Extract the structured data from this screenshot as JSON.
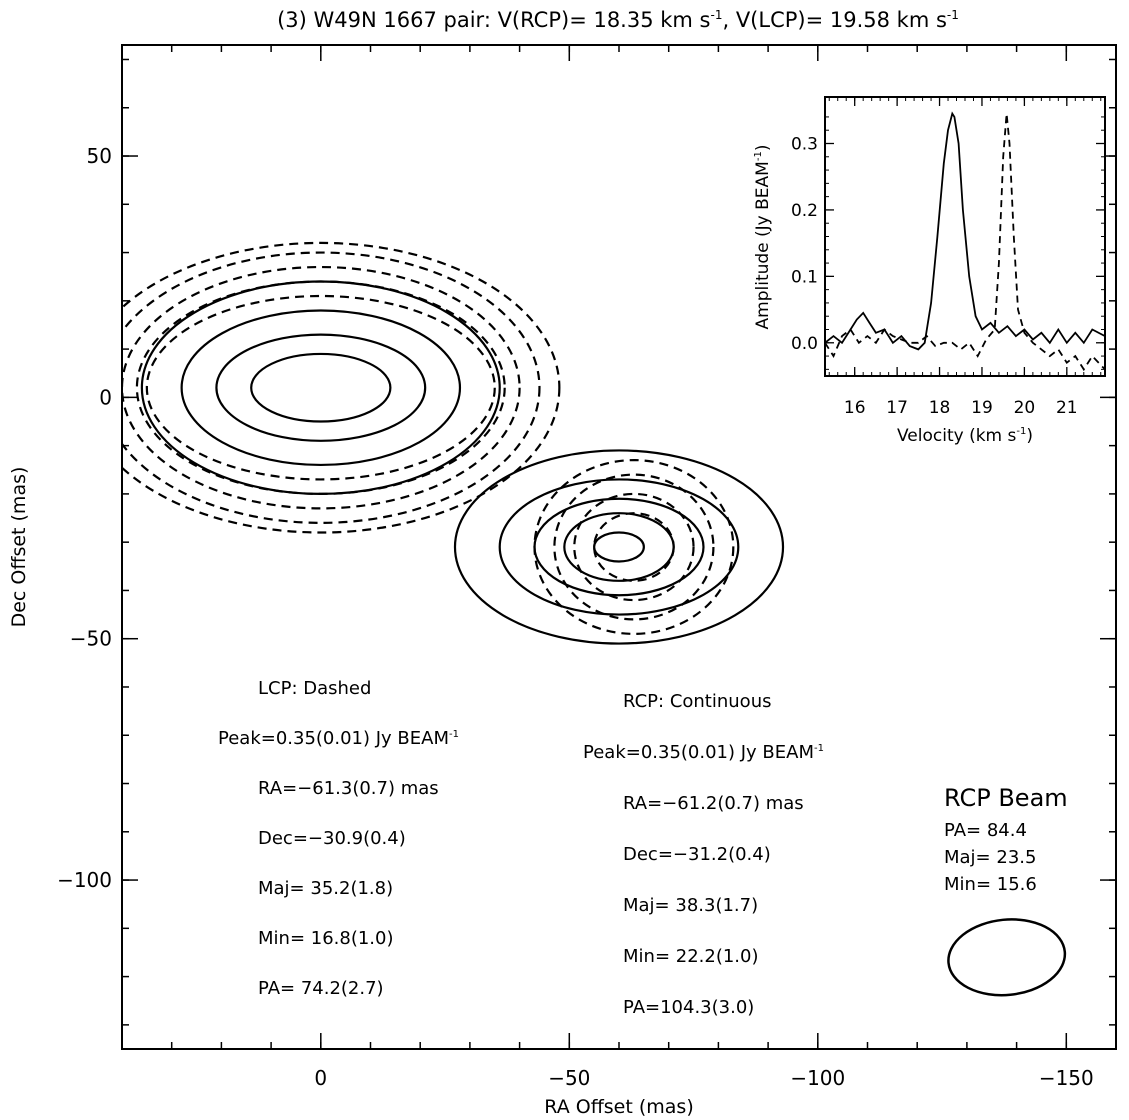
{
  "chart_data": [
    {
      "type": "contour",
      "title": "(3) W49N 1667 pair: V(RCP)= 18.35 km s",
      "title_sup1": "-1",
      "title_mid": ", V(LCP)= 19.58 km s",
      "title_sup2": "-1",
      "xlabel": "RA Offset (mas)",
      "ylabel": "Dec Offset (mas)",
      "xlim": [
        40,
        -160
      ],
      "ylim": [
        -135,
        73
      ],
      "x_reversed": true,
      "xticks": [
        {
          "value": 0,
          "label": "0"
        },
        {
          "value": -50,
          "label": "−50"
        },
        {
          "value": -100,
          "label": "−100"
        },
        {
          "value": -150,
          "label": "−150"
        }
      ],
      "yticks": [
        {
          "value": 50,
          "label": "50"
        },
        {
          "value": 0,
          "label": "0"
        },
        {
          "value": -50,
          "label": "−50"
        },
        {
          "value": -100,
          "label": "−100"
        }
      ],
      "x_minor_step": 10,
      "y_minor_step": 10,
      "series": [
        {
          "name": "LCP",
          "style": "dashed",
          "components": [
            {
              "cx": 0,
              "cy": 2,
              "rx": [
                48,
                44,
                40,
                37,
                35
              ],
              "ry": [
                30,
                28,
                25,
                22,
                19
              ]
            },
            {
              "cx": -63,
              "cy": -31,
              "rx": [
                20,
                16,
                12,
                8
              ],
              "ry": [
                18,
                15,
                11,
                7
              ]
            }
          ]
        },
        {
          "name": "RCP",
          "style": "solid",
          "components": [
            {
              "cx": 0,
              "cy": 2,
              "rx": [
                36,
                28,
                21,
                14
              ],
              "ry": [
                22,
                16,
                11,
                7
              ]
            },
            {
              "cx": -60,
              "cy": -31,
              "rx": [
                33,
                24,
                17,
                11,
                5
              ],
              "ry": [
                20,
                14,
                10,
                7,
                3
              ]
            }
          ]
        }
      ],
      "lcp_info": {
        "title": "LCP: Dashed",
        "peak": "Peak=0.35(0.01) Jy BEAM",
        "peak_sup": "-1",
        "lines": [
          "RA=−61.3(0.7) mas",
          "Dec=−30.9(0.4)",
          "Maj= 35.2(1.8)",
          "Min= 16.8(1.0)",
          "PA= 74.2(2.7)"
        ]
      },
      "rcp_info": {
        "title": "RCP: Continuous",
        "peak": "Peak=0.35(0.01) Jy BEAM",
        "peak_sup": "-1",
        "lines": [
          "RA=−61.2(0.7) mas",
          "Dec=−31.2(0.4)",
          "Maj= 38.3(1.7)",
          "Min= 22.2(1.0)",
          "PA=104.3(3.0)"
        ]
      },
      "beam": {
        "title": "RCP Beam",
        "lines": [
          "PA= 84.4",
          "Maj= 23.5",
          "Min= 15.6"
        ],
        "pa": 84.4,
        "maj": 23.5,
        "min": 15.6
      }
    },
    {
      "type": "line",
      "xlabel": "Velocity (km s",
      "xlabel_sup": "-1",
      "xlabel_end": ")",
      "ylabel": "Amplitude (Jy BEAM",
      "ylabel_sup": "-1",
      "ylabel_end": ")",
      "xlim": [
        15.3,
        21.9
      ],
      "ylim": [
        -0.05,
        0.37
      ],
      "xticks": [
        16,
        17,
        18,
        19,
        20,
        21
      ],
      "yticks": [
        {
          "value": 0.3,
          "label": "0.3"
        },
        {
          "value": 0.2,
          "label": "0.2"
        },
        {
          "value": 0.1,
          "label": "0.1"
        },
        {
          "value": 0.0,
          "label": "0.0"
        }
      ],
      "series": [
        {
          "name": "RCP",
          "style": "solid",
          "x": [
            15.3,
            15.5,
            15.7,
            15.9,
            16.05,
            16.2,
            16.35,
            16.5,
            16.7,
            16.9,
            17.1,
            17.3,
            17.5,
            17.65,
            17.8,
            17.95,
            18.1,
            18.2,
            18.3,
            18.35,
            18.45,
            18.55,
            18.7,
            18.85,
            19.0,
            19.2,
            19.4,
            19.6,
            19.8,
            20.0,
            20.2,
            20.4,
            20.6,
            20.8,
            21.0,
            21.2,
            21.4,
            21.6,
            21.9
          ],
          "y": [
            0.0,
            0.01,
            0.0,
            0.02,
            0.035,
            0.045,
            0.03,
            0.015,
            0.02,
            0.0,
            0.01,
            -0.005,
            -0.01,
            0.0,
            0.06,
            0.16,
            0.27,
            0.32,
            0.345,
            0.34,
            0.3,
            0.2,
            0.1,
            0.04,
            0.02,
            0.03,
            0.015,
            0.025,
            0.01,
            0.02,
            0.005,
            0.015,
            0.0,
            0.02,
            0.0,
            0.015,
            0.0,
            0.02,
            0.01
          ]
        },
        {
          "name": "LCP",
          "style": "dashed",
          "x": [
            15.3,
            15.5,
            15.7,
            15.9,
            16.1,
            16.3,
            16.5,
            16.7,
            16.9,
            17.1,
            17.3,
            17.5,
            17.7,
            17.9,
            18.1,
            18.3,
            18.5,
            18.7,
            18.9,
            19.1,
            19.3,
            19.4,
            19.5,
            19.58,
            19.65,
            19.75,
            19.85,
            20.0,
            20.2,
            20.4,
            20.6,
            20.8,
            21.0,
            21.2,
            21.4,
            21.6,
            21.9
          ],
          "y": [
            0.0,
            -0.02,
            0.01,
            0.02,
            0.0,
            0.01,
            0.0,
            0.02,
            0.01,
            0.005,
            0.0,
            0.0,
            0.01,
            -0.005,
            0.0,
            0.0,
            -0.01,
            0.0,
            -0.02,
            0.005,
            0.02,
            0.12,
            0.28,
            0.345,
            0.3,
            0.16,
            0.05,
            0.015,
            0.0,
            -0.01,
            -0.02,
            -0.01,
            -0.03,
            -0.02,
            -0.04,
            -0.02,
            -0.04
          ]
        }
      ]
    }
  ]
}
